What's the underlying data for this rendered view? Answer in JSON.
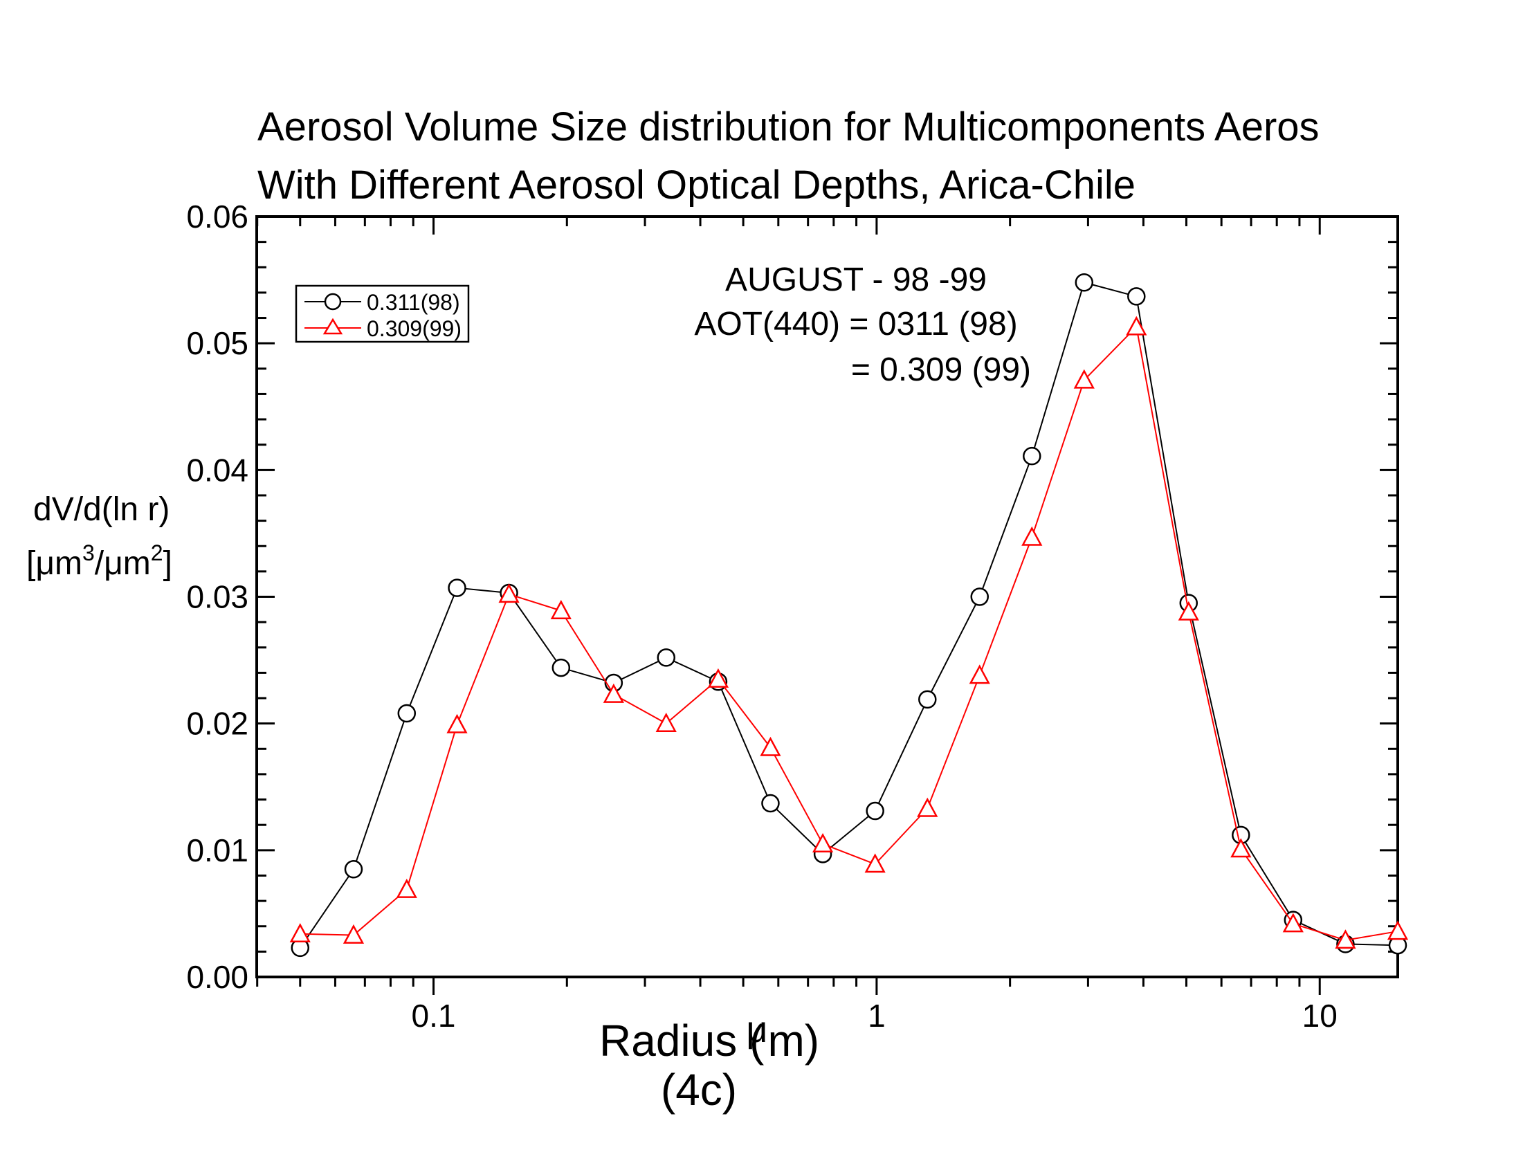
{
  "chart_data": {
    "type": "line",
    "title": "Aerosol Volume Size distribution for Multicomponents Aeros",
    "subtitle": "With Different Aerosol Optical Depths, Arica-Chile",
    "ylabel_line1": "dV/d(ln r)",
    "ylabel_unit_parts": [
      "[",
      "μ",
      "m",
      "3",
      "/",
      "μ",
      "m",
      "2",
      "]"
    ],
    "xlabel": "Radius (",
    "xlabel_mu": "μ",
    "xlabel_end": "m)",
    "figure_label": "(4c)",
    "x_scale": "log",
    "xlim": [
      0.0399,
      15
    ],
    "ylim": [
      0,
      0.06
    ],
    "x_ticks": [
      {
        "value": 0.1,
        "label": "0.1"
      },
      {
        "value": 1,
        "label": "1"
      },
      {
        "value": 10,
        "label": "10"
      }
    ],
    "y_ticks": [
      {
        "value": 0,
        "label": "0.00"
      },
      {
        "value": 0.01,
        "label": "0.01"
      },
      {
        "value": 0.02,
        "label": "0.02"
      },
      {
        "value": 0.03,
        "label": "0.03"
      },
      {
        "value": 0.04,
        "label": "0.04"
      },
      {
        "value": 0.05,
        "label": "0.05"
      },
      {
        "value": 0.06,
        "label": "0.06"
      }
    ],
    "annotation_lines": [
      "AUGUST - 98 -99",
      "AOT(440) = 0311 (98)",
      "= 0.309 (99)"
    ],
    "legend_position": "top-left",
    "x": [
      0.05,
      0.066,
      0.087,
      0.113,
      0.148,
      0.194,
      0.255,
      0.335,
      0.439,
      0.576,
      0.756,
      0.992,
      1.302,
      1.708,
      2.241,
      2.94,
      3.857,
      5.06,
      6.639,
      8.71,
      11.43,
      15.0
    ],
    "series": [
      {
        "name": "0.311(98)",
        "color": "#000000",
        "marker": "circle",
        "values": [
          0.0023,
          0.0085,
          0.0208,
          0.0307,
          0.0303,
          0.0244,
          0.0232,
          0.0252,
          0.0233,
          0.0137,
          0.0097,
          0.0131,
          0.0219,
          0.03,
          0.0411,
          0.0548,
          0.0537,
          0.0295,
          0.0112,
          0.0045,
          0.0026,
          0.0025
        ]
      },
      {
        "name": "0.309(99)",
        "color": "#ff0000",
        "marker": "triangle",
        "values": [
          0.0034,
          0.0033,
          0.0069,
          0.0199,
          0.0302,
          0.0289,
          0.0223,
          0.02,
          0.0235,
          0.0181,
          0.0105,
          0.0089,
          0.0133,
          0.0238,
          0.0347,
          0.0471,
          0.0513,
          0.0288,
          0.0101,
          0.0042,
          0.0029,
          0.0036
        ]
      }
    ]
  }
}
